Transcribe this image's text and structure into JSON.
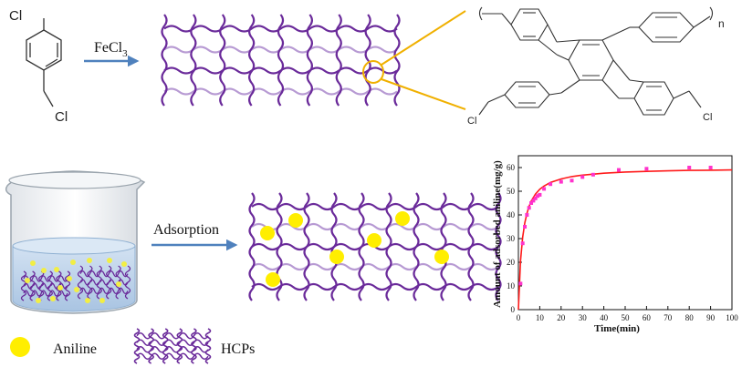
{
  "molecule": {
    "cl_top": "Cl",
    "cl_bottom": "Cl"
  },
  "reagent": {
    "base": "FeCl",
    "sub": "3"
  },
  "polymer_structure": {
    "cl_left": "Cl",
    "cl_right": "Cl",
    "repeat": "n"
  },
  "process": {
    "label": "Adsorption"
  },
  "legend": {
    "aniline": "Aniline",
    "hcps": "HCPs"
  },
  "colors": {
    "network": "#6a2a9a",
    "network_light": "#b79ad3",
    "aniline": "#ffee00",
    "arrow": "#4f81bd",
    "zoom": "#f0b000",
    "fit_curve": "#ff1a1a",
    "points": "#ff33cc",
    "water": "#bcd3ea"
  },
  "chart_data": {
    "type": "scatter",
    "xlabel": "Time(min)",
    "ylabel": "Amount of adsorbed aniline(mg/g)",
    "xlim": [
      0,
      100
    ],
    "ylim": [
      0,
      65
    ],
    "xticks": [
      0,
      10,
      20,
      30,
      40,
      50,
      60,
      70,
      80,
      90,
      100
    ],
    "yticks": [
      0,
      10,
      20,
      30,
      40,
      50,
      60
    ],
    "grid": false,
    "series": [
      {
        "kind": "points",
        "x": [
          1,
          2,
          3,
          4,
          5,
          6,
          7,
          8,
          9,
          10,
          12,
          15,
          20,
          25,
          30,
          35,
          47,
          60,
          80,
          90
        ],
        "y": [
          11,
          28,
          35,
          40,
          43,
          45,
          46,
          47,
          48,
          48.5,
          51,
          53,
          54,
          54.5,
          56,
          57,
          59,
          59.5,
          60,
          60
        ]
      },
      {
        "kind": "fit",
        "x": [
          0,
          1,
          2,
          3,
          4,
          5,
          6,
          8,
          10,
          12,
          15,
          20,
          25,
          30,
          40,
          50,
          60,
          70,
          80,
          90,
          100
        ],
        "y": [
          0,
          20.5,
          30.6,
          36.6,
          40.7,
          43.6,
          45.8,
          48.8,
          50.8,
          52.2,
          53.7,
          55.2,
          56.2,
          56.8,
          57.6,
          58.1,
          58.4,
          58.6,
          58.8,
          58.9,
          59.0
        ]
      }
    ]
  }
}
